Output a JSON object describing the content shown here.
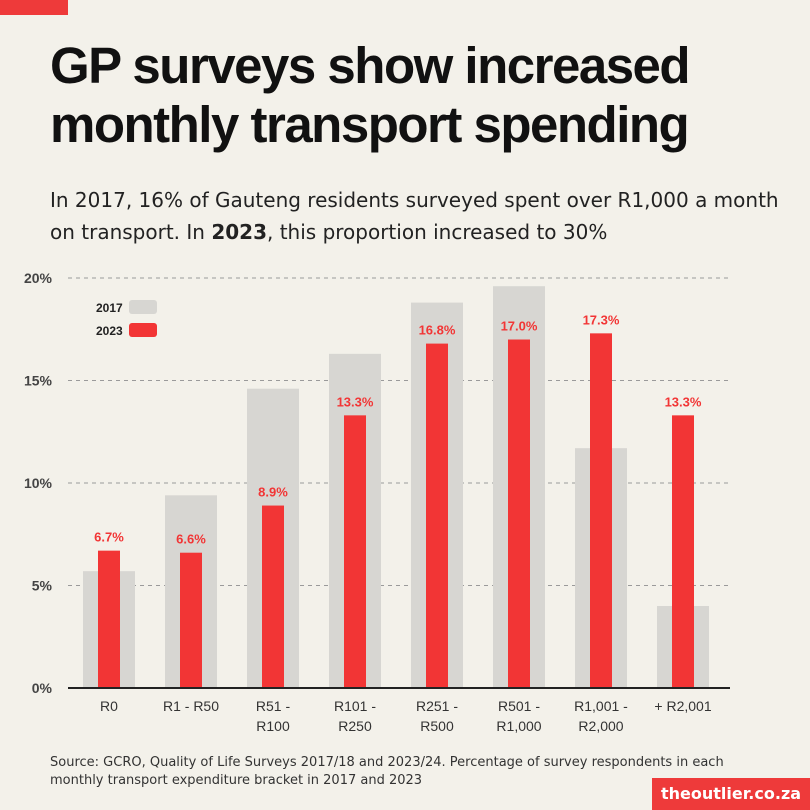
{
  "header": {
    "title_line1": "GP surveys show increased",
    "title_line2": "monthly transport spending",
    "subtitle_part1": "In 2017, 16% of Gauteng residents surveyed spent over R1,000 a month on transport. In ",
    "subtitle_bold": "2023",
    "subtitle_part2": ", this proportion increased to 30%"
  },
  "colors": {
    "accent": "#ee3a3a",
    "series_2017": "#d7d6d2",
    "series_2023": "#f23535",
    "background": "#f3f1ea"
  },
  "chart_data": {
    "type": "bar",
    "title": "",
    "xlabel": "",
    "ylabel": "",
    "ylim": [
      0,
      20
    ],
    "yticks": [
      {
        "value": 0,
        "label": "0%"
      },
      {
        "value": 5,
        "label": "5%"
      },
      {
        "value": 10,
        "label": "10%"
      },
      {
        "value": 15,
        "label": "15%"
      },
      {
        "value": 20,
        "label": "20%"
      }
    ],
    "grid": true,
    "legend_position": "top-left",
    "categories": [
      [
        "R0"
      ],
      [
        "R1 - R50"
      ],
      [
        "R51 -",
        "R100"
      ],
      [
        "R101 -",
        "R250"
      ],
      [
        "R251 -",
        "R500"
      ],
      [
        "R501 -",
        "R1,000"
      ],
      [
        "R1,001 -",
        "R2,000"
      ],
      [
        "+ R2,001"
      ]
    ],
    "series": [
      {
        "name": "2017",
        "values": [
          5.7,
          9.4,
          14.6,
          16.3,
          18.8,
          19.6,
          11.7,
          4.0
        ],
        "labels": []
      },
      {
        "name": "2023",
        "values": [
          6.7,
          6.6,
          8.9,
          13.3,
          16.8,
          17.0,
          17.3,
          13.3
        ],
        "labels": [
          "6.7%",
          "6.6%",
          "8.9%",
          "13.3%",
          "16.8%",
          "17.0%",
          "17.3%",
          "13.3%"
        ]
      }
    ]
  },
  "footer": {
    "source": "Source: GCRO, Quality of Life Surveys 2017/18 and 2023/24. Percentage of survey respondents in each monthly transport expenditure bracket in 2017 and 2023",
    "brand": "theoutlier.co.za"
  }
}
